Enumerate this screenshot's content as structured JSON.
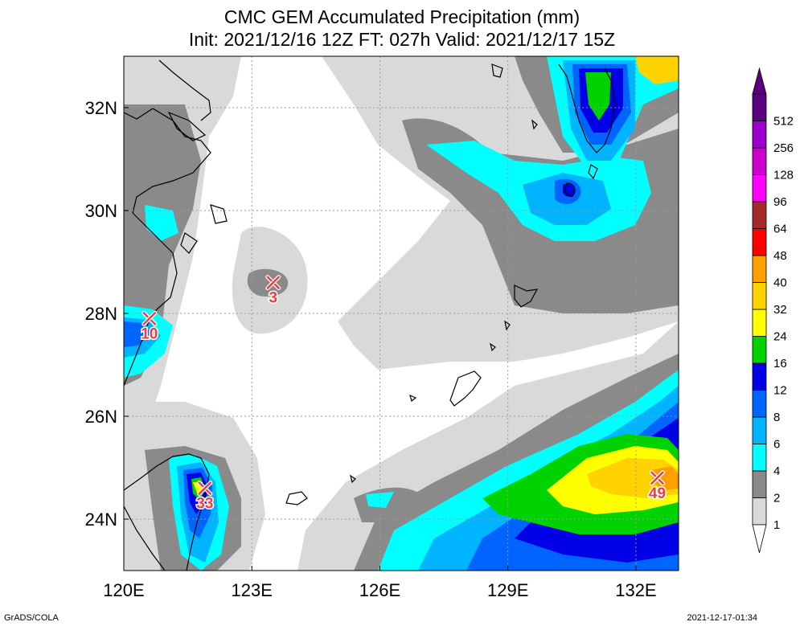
{
  "title": {
    "line1": "CMC GEM Accumulated Precipitation (mm)",
    "line2": "Init: 2021/12/16 12Z  FT: 027h  Valid: 2021/12/17 15Z"
  },
  "axes": {
    "x_ticks": [
      {
        "value": 120,
        "label": "120E"
      },
      {
        "value": 123,
        "label": "123E"
      },
      {
        "value": 126,
        "label": "126E"
      },
      {
        "value": 129,
        "label": "129E"
      },
      {
        "value": 132,
        "label": "132E"
      }
    ],
    "y_ticks": [
      {
        "value": 24,
        "label": "24N"
      },
      {
        "value": 26,
        "label": "26N"
      },
      {
        "value": 28,
        "label": "28N"
      },
      {
        "value": 30,
        "label": "30N"
      },
      {
        "value": 32,
        "label": "32N"
      }
    ],
    "lon_range": [
      120,
      133
    ],
    "lat_range": [
      23,
      33
    ]
  },
  "colorbar": {
    "levels": [
      {
        "label": "1",
        "color": "#d9d9d9"
      },
      {
        "label": "2",
        "color": "#8a8a8a"
      },
      {
        "label": "4",
        "color": "#00ffff"
      },
      {
        "label": "6",
        "color": "#00b4ff"
      },
      {
        "label": "8",
        "color": "#0064ff"
      },
      {
        "label": "12",
        "color": "#0000e6"
      },
      {
        "label": "16",
        "color": "#00d200"
      },
      {
        "label": "24",
        "color": "#ffff00"
      },
      {
        "label": "32",
        "color": "#ffd200"
      },
      {
        "label": "40",
        "color": "#ffa000"
      },
      {
        "label": "48",
        "color": "#ff0000"
      },
      {
        "label": "64",
        "color": "#a52a2a"
      },
      {
        "label": "96",
        "color": "#ff00ff"
      },
      {
        "label": "128",
        "color": "#cc00cc"
      },
      {
        "label": "256",
        "color": "#9900cc"
      },
      {
        "label": "512",
        "color": "#5a007f"
      }
    ]
  },
  "markers": [
    {
      "label": "10",
      "lon": 120.6,
      "lat": 27.9
    },
    {
      "label": "3",
      "lon": 123.5,
      "lat": 28.6
    },
    {
      "label": "33",
      "lon": 121.9,
      "lat": 24.6
    },
    {
      "label": "49",
      "lon": 132.5,
      "lat": 24.8
    }
  ],
  "footer": {
    "left": "GrADS/COLA",
    "right": "2021-12-17-01:34"
  }
}
